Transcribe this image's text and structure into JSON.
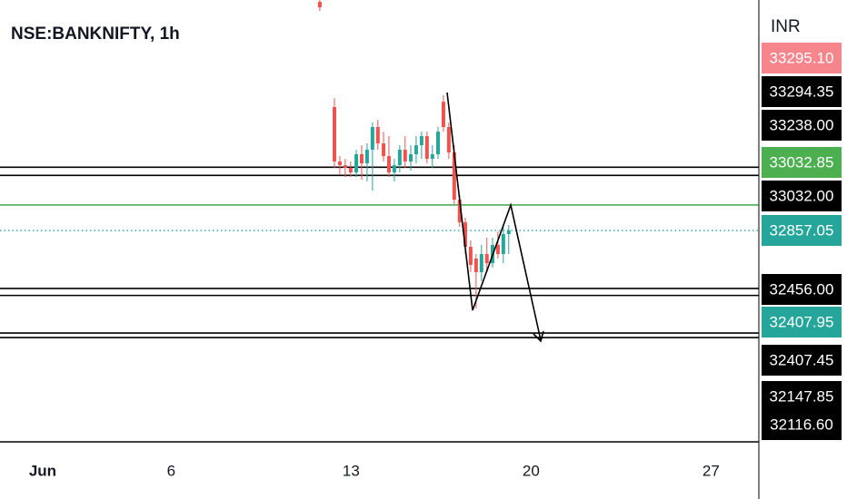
{
  "chart_data": {
    "type": "candlestick",
    "title": "NSE:BANKNIFTY, 1h",
    "currency": "INR",
    "up_color": "#26a69a",
    "down_color": "#ef5350",
    "x": [
      11.78,
      12.35,
      12.56,
      12.77,
      12.98,
      13.2,
      13.41,
      13.62,
      13.83,
      14.04,
      14.26,
      14.47,
      14.68,
      14.89,
      15.1,
      15.32,
      15.53,
      15.74,
      15.95,
      16.16,
      16.38,
      16.59,
      16.8,
      17.01,
      17.22,
      17.44,
      17.65,
      17.86,
      18.07,
      18.28,
      18.5,
      18.71,
      18.92,
      19.13
    ],
    "open": [
      34437,
      33710,
      33334,
      33308,
      33290,
      33258,
      33384,
      33321,
      33415,
      33572,
      33459,
      33371,
      33258,
      33308,
      33415,
      33334,
      33384,
      33446,
      33509,
      33352,
      33384,
      33747,
      33572,
      33396,
      33070,
      32913,
      32744,
      32663,
      32569,
      32694,
      32631,
      32757,
      32694,
      32832
    ],
    "high": [
      34450,
      33772,
      33371,
      33352,
      33334,
      33415,
      33446,
      33459,
      33603,
      33622,
      33540,
      33509,
      33352,
      33446,
      33509,
      33446,
      33509,
      33540,
      33540,
      33446,
      33572,
      33791,
      33603,
      33446,
      33102,
      32945,
      32788,
      32694,
      32757,
      32807,
      32807,
      32851,
      32882,
      32895
    ],
    "low": [
      34374,
      33290,
      33246,
      33227,
      33227,
      33227,
      33208,
      33196,
      33133,
      33415,
      33334,
      33227,
      33196,
      33258,
      33290,
      33271,
      33321,
      33352,
      33321,
      33290,
      33352,
      33540,
      33352,
      33039,
      32882,
      32694,
      32569,
      32318,
      32506,
      32569,
      32600,
      32663,
      32631,
      32694
    ],
    "close": [
      34399,
      33334,
      33308,
      33290,
      33258,
      33384,
      33321,
      33415,
      33572,
      33459,
      33371,
      33258,
      33308,
      33415,
      33334,
      33384,
      33446,
      33509,
      33352,
      33384,
      33540,
      33572,
      33396,
      33070,
      32913,
      32744,
      32619,
      32569,
      32694,
      32631,
      32757,
      32694,
      32832,
      32857
    ],
    "xlim": [
      -0.66,
      28.86
    ],
    "xticks": [
      {
        "value": 1,
        "label": "Jun"
      },
      6,
      13,
      20,
      27
    ],
    "ylim": [
      31396,
      34450
    ],
    "price_tags": [
      {
        "value": 33295.1,
        "label": "33295.10",
        "color": "#f7868c",
        "line": "none"
      },
      {
        "value": 33294.35,
        "label": "33294.35",
        "color": "#000000",
        "line": "solid"
      },
      {
        "value": 33238,
        "label": "33238.00",
        "color": "#000000",
        "line": "solid"
      },
      {
        "value": 33032.85,
        "label": "33032.85",
        "color": "#4caf50",
        "line": "green"
      },
      {
        "value": 33032,
        "label": "33032.00",
        "color": "#000000",
        "line": "none"
      },
      {
        "value": 32857.05,
        "label": "32857.05",
        "color": "#26a69a",
        "line": "dotted"
      },
      {
        "value": 32456,
        "label": "32456.00",
        "color": "#000000",
        "line": "solid"
      },
      {
        "value": 32407.95,
        "label": "32407.95",
        "color": "#26a69a",
        "line": "solid"
      },
      {
        "value": 32407.45,
        "label": "32407.45",
        "color": "#000000",
        "line": "none"
      },
      {
        "value": 32147.85,
        "label": "32147.85",
        "color": "#000000",
        "line": "solid"
      },
      {
        "value": 32116.6,
        "label": "32116.60",
        "color": "#000000",
        "line": "solid"
      }
    ]
  }
}
